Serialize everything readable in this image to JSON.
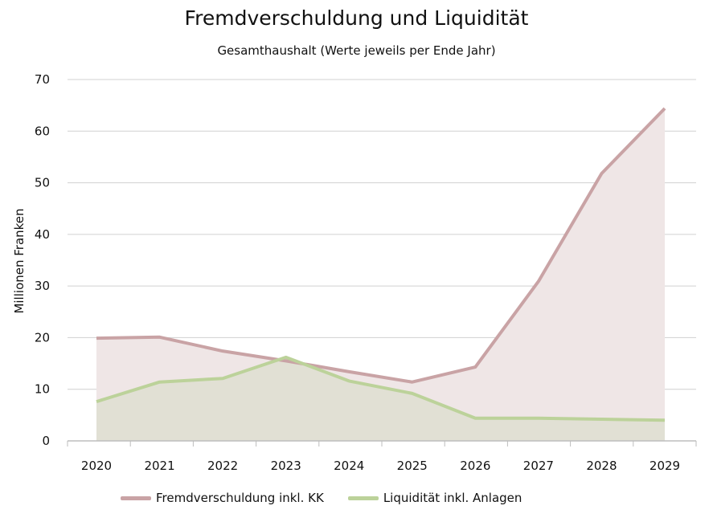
{
  "chart_data": {
    "type": "area",
    "title": "Fremdverschuldung und Liquidität",
    "subtitle": "Gesamthaushalt (Werte jeweils per Ende Jahr)",
    "xlabel": "",
    "ylabel": "Millionen Franken",
    "ylim": [
      0,
      70
    ],
    "yticks": [
      0,
      10,
      20,
      30,
      40,
      50,
      60,
      70
    ],
    "grid": true,
    "legend_position": "bottom",
    "categories": [
      "2020",
      "2021",
      "2022",
      "2023",
      "2024",
      "2025",
      "2026",
      "2027",
      "2028",
      "2029"
    ],
    "series": [
      {
        "name": "Fremdverschuldung inkl. KK",
        "color": "#c9a3a5",
        "fill": "#efe6e6",
        "values": [
          19.9,
          20.1,
          17.4,
          15.5,
          13.4,
          11.4,
          14.3,
          30.9,
          51.8,
          64.4
        ]
      },
      {
        "name": "Liquidität inkl. Anlagen",
        "color": "#bcd29a",
        "fill": "#e1e0d4",
        "values": [
          7.6,
          11.4,
          12.1,
          16.2,
          11.6,
          9.2,
          4.4,
          4.4,
          4.2,
          4.0
        ]
      }
    ]
  }
}
